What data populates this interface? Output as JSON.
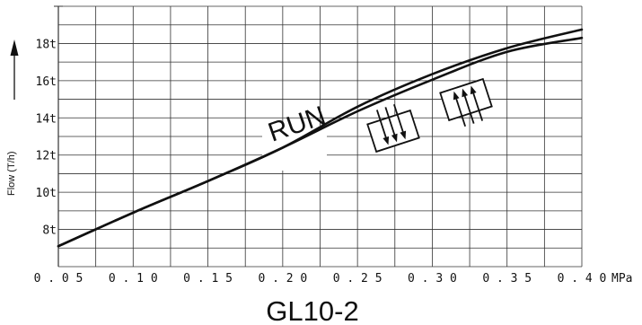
{
  "chart_data": {
    "type": "line",
    "title": "GL10-2",
    "xlabel": "MPa",
    "ylabel": "Flow (T/h)",
    "xlim": [
      0.05,
      0.4
    ],
    "ylim": [
      6,
      20
    ],
    "grid": true,
    "x_ticks": [
      {
        "value": 0.05,
        "label": "0.05"
      },
      {
        "value": 0.1,
        "label": "0.10"
      },
      {
        "value": 0.15,
        "label": "0.15"
      },
      {
        "value": 0.2,
        "label": "0.20"
      },
      {
        "value": 0.25,
        "label": "0.25"
      },
      {
        "value": 0.3,
        "label": "0.30"
      },
      {
        "value": 0.35,
        "label": "0.35"
      },
      {
        "value": 0.4,
        "label": "0.40"
      }
    ],
    "y_ticks": [
      {
        "value": 8,
        "label": "8t"
      },
      {
        "value": 10,
        "label": "10t"
      },
      {
        "value": 12,
        "label": "12t"
      },
      {
        "value": 14,
        "label": "14t"
      },
      {
        "value": 16,
        "label": "16t"
      },
      {
        "value": 18,
        "label": "18t"
      }
    ],
    "annotations": [
      {
        "text": "RUN",
        "x": 0.215,
        "y": 13.4
      }
    ],
    "series": [
      {
        "x": [
          0.05,
          0.1,
          0.15,
          0.2,
          0.25,
          0.3,
          0.35,
          0.4
        ],
        "values": [
          7.1,
          8.9,
          10.6,
          12.4,
          14.35,
          16.05,
          17.55,
          18.3
        ]
      },
      {
        "x": [
          0.05,
          0.1,
          0.15,
          0.2,
          0.25,
          0.3,
          0.35,
          0.4
        ],
        "values": [
          7.1,
          8.9,
          10.6,
          12.4,
          14.6,
          16.35,
          17.75,
          18.75
        ]
      }
    ],
    "colors": {
      "line": "#111111",
      "grid": "#333333",
      "background": "#ffffff"
    }
  }
}
